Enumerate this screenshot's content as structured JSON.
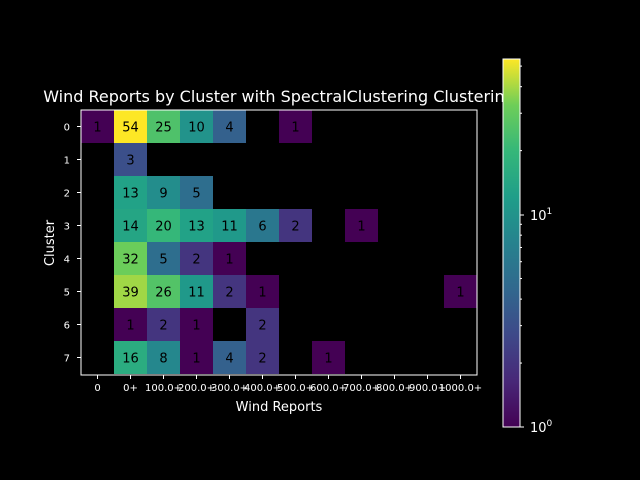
{
  "chart_data": {
    "type": "heatmap",
    "title": "Wind Reports by Cluster with SpectralClustering Clustering",
    "xlabel": "Wind Reports",
    "ylabel": "Cluster",
    "x_categories": [
      "0",
      "0+",
      "100.0+",
      "200.0+",
      "300.0+",
      "400.0+",
      "500.0+",
      "600.0+",
      "700.0+",
      "800.0+",
      "900.0+",
      "1000.0+"
    ],
    "y_categories": [
      "0",
      "1",
      "2",
      "3",
      "4",
      "5",
      "6",
      "7"
    ],
    "values": [
      [
        1,
        54,
        25,
        10,
        4,
        null,
        1,
        null,
        null,
        null,
        null,
        null
      ],
      [
        null,
        3,
        null,
        null,
        null,
        null,
        null,
        null,
        null,
        null,
        null,
        null
      ],
      [
        null,
        13,
        9,
        5,
        null,
        null,
        null,
        null,
        null,
        null,
        null,
        null
      ],
      [
        null,
        14,
        20,
        13,
        11,
        6,
        2,
        null,
        1,
        null,
        null,
        null
      ],
      [
        null,
        32,
        5,
        2,
        1,
        null,
        null,
        null,
        null,
        null,
        null,
        null
      ],
      [
        null,
        39,
        26,
        11,
        2,
        1,
        null,
        null,
        null,
        null,
        null,
        1
      ],
      [
        null,
        1,
        2,
        1,
        null,
        2,
        null,
        null,
        null,
        null,
        null,
        null
      ],
      [
        null,
        16,
        8,
        1,
        4,
        2,
        null,
        1,
        null,
        null,
        null,
        null
      ]
    ],
    "colorscale": "viridis",
    "color_scale_type": "log",
    "color_range": [
      1,
      54
    ],
    "colorbar_ticks": [
      "10^0",
      "10^1"
    ]
  }
}
